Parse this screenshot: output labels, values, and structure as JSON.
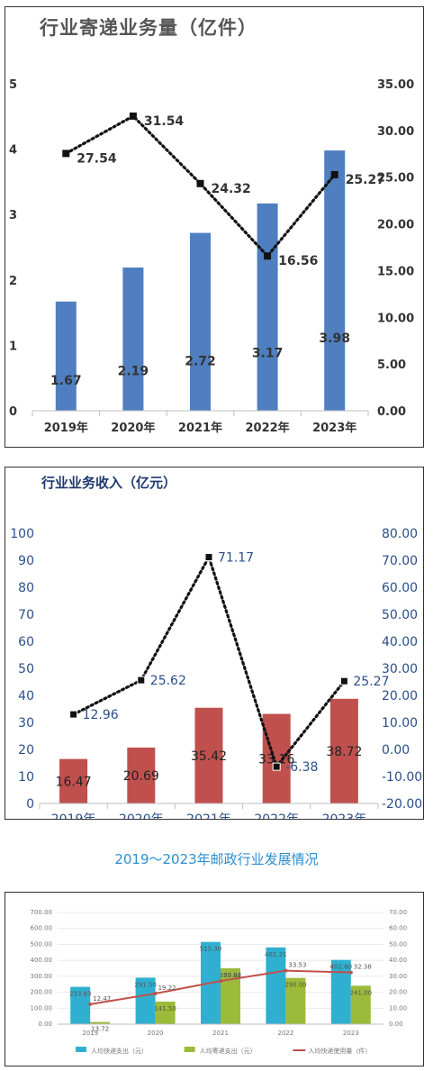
{
  "caption": "2019～2023年邮政行业发展情况",
  "chart_data": [
    {
      "type": "bar",
      "title": "行业寄递业务量（亿件）",
      "categories": [
        "2019年",
        "2020年",
        "2021年",
        "2022年",
        "2023年"
      ],
      "ylim": [
        0,
        5
      ],
      "y_ticks": [
        "0",
        "1",
        "2",
        "3",
        "4",
        "5"
      ],
      "y2lim": [
        0,
        35
      ],
      "y2_ticks": [
        "0.00",
        "5.00",
        "10.00",
        "15.00",
        "20.00",
        "25.00",
        "30.00",
        "35.00"
      ],
      "series": [
        {
          "type": "bar",
          "axis": "left",
          "color": "#4f7fc0",
          "values": [
            1.67,
            2.19,
            2.72,
            3.17,
            3.98
          ],
          "labels": [
            "1.67",
            "2.19",
            "2.72",
            "3.17",
            "3.98"
          ]
        },
        {
          "type": "line",
          "axis": "right",
          "style": "dotted",
          "marker": "square",
          "color": "#111111",
          "values": [
            27.54,
            31.54,
            24.32,
            16.56,
            25.27
          ],
          "labels": [
            "27.54",
            "31.54",
            "24.32",
            "16.56",
            "25.27"
          ]
        }
      ],
      "grid": false
    },
    {
      "type": "bar",
      "title": "行业业务收入（亿元）",
      "categories": [
        "2019年",
        "2020年",
        "2021年",
        "2022年",
        "2023年"
      ],
      "ylim": [
        0,
        100
      ],
      "y_ticks": [
        "0",
        "10",
        "20",
        "30",
        "40",
        "50",
        "60",
        "70",
        "80",
        "90",
        "100"
      ],
      "y2lim": [
        -20,
        80
      ],
      "y2_ticks": [
        "-20.00",
        "-10.00",
        "0.00",
        "10.00",
        "20.00",
        "30.00",
        "40.00",
        "50.00",
        "60.00",
        "70.00",
        "80.00"
      ],
      "series": [
        {
          "type": "bar",
          "axis": "left",
          "color": "#c0504d",
          "values": [
            16.47,
            20.69,
            35.42,
            33.16,
            38.72
          ],
          "labels": [
            "16.47",
            "20.69",
            "35.42",
            "33.16",
            "38.72"
          ]
        },
        {
          "type": "line",
          "axis": "right",
          "style": "dotted",
          "marker": "square",
          "color": "#111111",
          "values": [
            12.96,
            25.62,
            71.17,
            -6.38,
            25.27
          ],
          "labels": [
            "12.96",
            "25.62",
            "71.17",
            "-6.38",
            "25.27"
          ]
        }
      ],
      "grid": false
    },
    {
      "type": "bar",
      "categories": [
        "2019",
        "2020",
        "2021",
        "2022",
        "2023"
      ],
      "ylim": [
        0,
        700
      ],
      "y_ticks": [
        "0.00",
        "100.00",
        "200.00",
        "300.00",
        "400.00",
        "500.00",
        "600.00",
        "700.00"
      ],
      "y2lim": [
        0,
        70
      ],
      "y2_ticks": [
        "0.00",
        "10.00",
        "20.00",
        "30.00",
        "40.00",
        "50.00",
        "60.00",
        "70.00"
      ],
      "series": [
        {
          "type": "bar",
          "axis": "left",
          "color": "#2fb0d0",
          "values": [
            233.8,
            291.5,
            515.3,
            481.2,
            402.8
          ],
          "labels": [
            "233.83",
            "291.50",
            "515.30",
            "481.21",
            "402.80"
          ]
        },
        {
          "type": "bar",
          "axis": "left",
          "color": "#9cbb3a",
          "values": [
            13.7,
            141.5,
            350.4,
            290,
            241
          ],
          "labels": [
            "13.72",
            "141.50",
            "350.42",
            "290.00",
            "241.00"
          ]
        },
        {
          "type": "line",
          "axis": "right",
          "color": "#c0504d",
          "marker": "circle",
          "values": [
            12.47,
            19.22,
            27.04,
            33.53,
            32.38
          ],
          "labels": [
            "12.47",
            "19.22",
            "27.04",
            "33.53",
            "32.38"
          ]
        }
      ],
      "legend_position": "bottom",
      "legend": [
        "人均快递支出（元）",
        "人均寄递支出（元）",
        "人均快递使用量（件）"
      ],
      "grid": true
    }
  ]
}
